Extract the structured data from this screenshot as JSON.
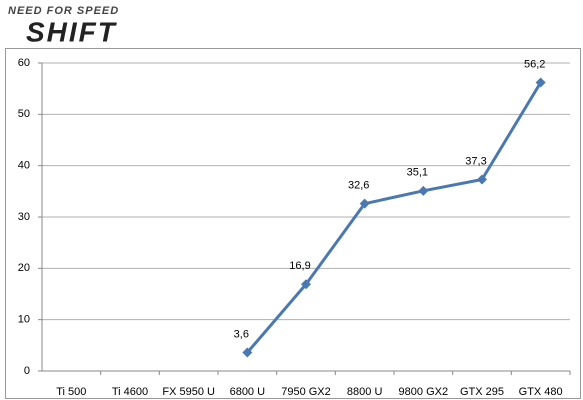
{
  "chart_data": {
    "type": "line",
    "subtitle": "NEED FOR SPEED",
    "title": "SHIFT",
    "categories": [
      "Ti 500",
      "Ti 4600",
      "FX 5950 U",
      "6800 U",
      "7950 GX2",
      "8800 U",
      "9800 GX2",
      "GTX 295",
      "GTX 480"
    ],
    "values": [
      null,
      null,
      null,
      3.6,
      16.9,
      32.6,
      35.1,
      37.3,
      56.2
    ],
    "value_labels": [
      null,
      null,
      null,
      "3,6",
      "16,9",
      "32,6",
      "35,1",
      "37,3",
      "56,2"
    ],
    "color": "#4a78b3",
    "ylim": [
      0,
      60
    ],
    "yticks": [
      0,
      10,
      20,
      30,
      40,
      50,
      60
    ],
    "grid": true
  }
}
